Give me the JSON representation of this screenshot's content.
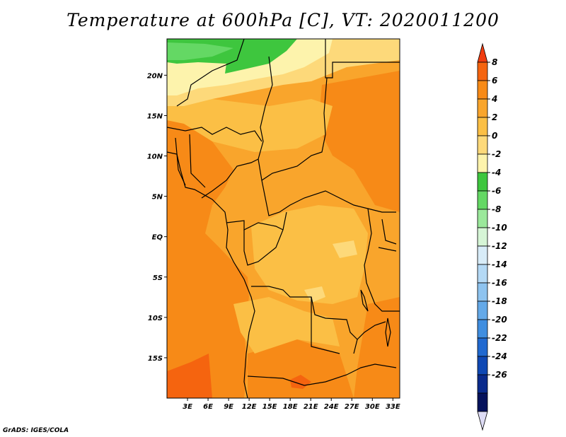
{
  "title": "Temperature at 600hPa [C], VT: 2020011200",
  "credit": "GrADS: IGES/COLA",
  "map": {
    "lon_range": [
      0,
      34
    ],
    "lat_range": [
      -20,
      24.5
    ],
    "lat_ticks": [
      {
        "label": "20N",
        "lat": 20
      },
      {
        "label": "15N",
        "lat": 15
      },
      {
        "label": "10N",
        "lat": 10
      },
      {
        "label": "5N",
        "lat": 5
      },
      {
        "label": "EQ",
        "lat": 0
      },
      {
        "label": "5S",
        "lat": -5
      },
      {
        "label": "10S",
        "lat": -10
      },
      {
        "label": "15S",
        "lat": -15
      }
    ],
    "lon_ticks": [
      {
        "label": "3E",
        "lon": 3
      },
      {
        "label": "6E",
        "lon": 6
      },
      {
        "label": "9E",
        "lon": 9
      },
      {
        "label": "12E",
        "lon": 12
      },
      {
        "label": "15E",
        "lon": 15
      },
      {
        "label": "18E",
        "lon": 18
      },
      {
        "label": "21E",
        "lon": 21
      },
      {
        "label": "24E",
        "lon": 24
      },
      {
        "label": "27E",
        "lon": 27
      },
      {
        "label": "30E",
        "lon": 30
      },
      {
        "label": "33E",
        "lon": 33
      }
    ]
  },
  "colorbar": {
    "levels": [
      "8",
      "6",
      "4",
      "2",
      "0",
      "-2",
      "-4",
      "-6",
      "-8",
      "-10",
      "-12",
      "-14",
      "-16",
      "-18",
      "-20",
      "-22",
      "-24",
      "-26"
    ],
    "colors": [
      "#f03c10",
      "#f5640f",
      "#f78a17",
      "#f9a52c",
      "#fbbf45",
      "#fdd97a",
      "#fdf3ac",
      "#3ec63e",
      "#64d864",
      "#9be89b",
      "#d6f5d6",
      "#d8ecf8",
      "#b4d9f5",
      "#8ec3ef",
      "#64a9e8",
      "#3f8ee0",
      "#2069d0",
      "#0f48b4",
      "#0a2a8c",
      "#05125c",
      "#dedcf5"
    ]
  },
  "field_colors": {
    "pale_yellow": "#fdf3ac",
    "light_yellow": "#fdd97a",
    "light_orange": "#fbbf45",
    "orange": "#f9a52c",
    "dark_orange": "#f78a17",
    "red_orange": "#f5640f",
    "green": "#3ec63e",
    "light_green": "#64d864"
  }
}
